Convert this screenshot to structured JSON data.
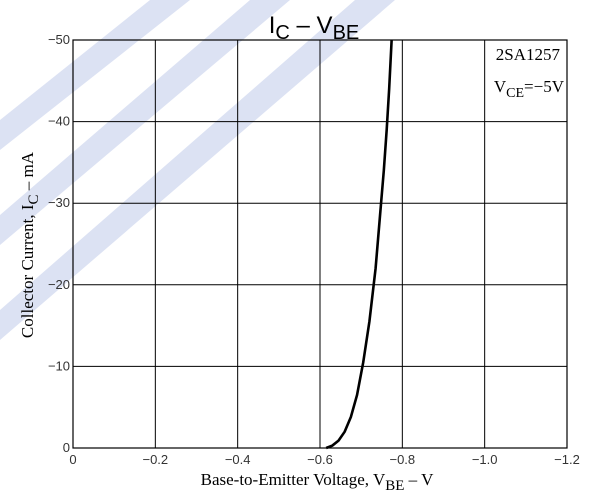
{
  "chart_data": {
    "type": "line",
    "title": {
      "main": "I",
      "sub1": "C",
      "dash": " – V",
      "sub2": "BE"
    },
    "xlabel": {
      "prefix": "Base-to-Emitter Voltage, V",
      "sub": "BE",
      "suffix": " – V"
    },
    "ylabel": {
      "prefix": "Collector Current, I",
      "sub": "C",
      "suffix": " – mA"
    },
    "xlim": [
      0,
      -1.2
    ],
    "ylim": [
      0,
      -50
    ],
    "x_ticks": [
      0,
      -0.2,
      -0.4,
      -0.6,
      -0.8,
      -1.0,
      -1.2
    ],
    "x_tick_labels": [
      "0",
      "−0.2",
      "−0.4",
      "−0.6",
      "−0.8",
      "−1.0",
      "−1.2"
    ],
    "y_ticks": [
      0,
      -10,
      -20,
      -30,
      -40,
      -50
    ],
    "y_tick_labels": [
      "0",
      "−10",
      "−20",
      "−30",
      "−40",
      "−50"
    ],
    "grid": true,
    "annotation": {
      "line1": "2SA1257",
      "line2_prefix": "V",
      "line2_sub": "CE",
      "line2_suffix": "=−5V"
    },
    "series": [
      {
        "x": [
          -0.615,
          -0.63,
          -0.645,
          -0.66,
          -0.675,
          -0.69,
          -0.705,
          -0.72,
          -0.735,
          -0.745,
          -0.755,
          -0.762,
          -0.768,
          -0.774
        ],
        "y": [
          0,
          -0.3,
          -0.9,
          -2.0,
          -3.8,
          -6.5,
          -10.5,
          -15.5,
          -22,
          -28,
          -34,
          -39,
          -44,
          -50
        ]
      }
    ],
    "colors": {
      "line": "#000000",
      "grid": "#000000",
      "watermark": "#dce2f3"
    }
  }
}
